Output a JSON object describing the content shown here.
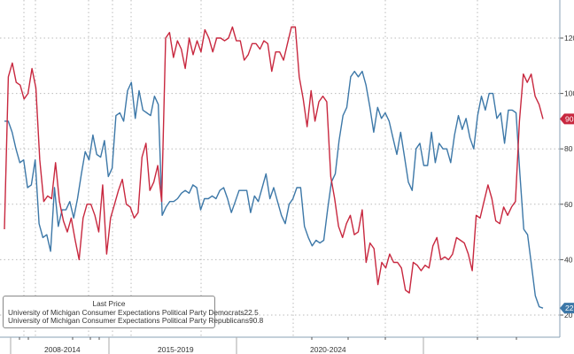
{
  "chart_data": {
    "type": "line",
    "title": "",
    "legend_title": "Last Price",
    "legend_placement": "bottom-left",
    "ylim": [
      15,
      135
    ],
    "yticks": [
      20,
      40,
      60,
      80,
      100,
      120
    ],
    "x_period_labels": [
      "2008-2014",
      "2015-2019",
      "2020-2024"
    ],
    "grid": true,
    "series": [
      {
        "name": "University of Michigan Consumer Expectations Political Party Democrats",
        "last": "22.5",
        "color": "#3d78a8",
        "values": [
          90,
          90,
          86,
          80,
          75,
          76,
          66,
          67,
          76,
          53,
          48,
          49,
          43,
          66,
          52,
          58,
          58,
          61,
          55,
          62,
          71,
          79,
          76,
          85,
          78,
          77,
          83,
          70,
          73,
          92,
          93,
          90,
          101,
          104,
          91,
          101,
          94,
          93,
          92,
          99,
          96,
          56,
          59,
          61,
          61,
          62,
          64,
          65,
          64,
          67,
          66,
          58,
          62,
          62,
          63,
          62,
          65,
          66,
          62,
          57,
          61,
          65,
          65,
          65,
          57,
          63,
          61,
          66,
          71,
          62,
          66,
          61,
          56,
          53,
          60,
          62,
          66,
          66,
          52,
          48,
          45,
          47,
          46,
          47,
          58,
          68,
          71,
          83,
          92,
          95,
          106,
          108,
          106,
          108,
          103,
          95,
          86,
          95,
          91,
          93,
          90,
          84,
          78,
          86,
          77,
          68,
          65,
          80,
          82,
          74,
          74,
          86,
          75,
          82,
          80,
          80,
          75,
          85,
          92,
          87,
          91,
          84,
          80,
          92,
          99,
          94,
          100,
          100,
          91,
          93,
          82,
          94,
          94,
          93,
          71,
          51,
          49,
          38,
          27,
          23,
          22.5
        ]
      },
      {
        "name": "University of Michigan Consumer Expectations Political Party Republicans",
        "last": "90.8",
        "color": "#c8283f",
        "values": [
          51,
          106,
          111,
          104,
          103,
          98,
          100,
          109,
          102,
          76,
          61,
          63,
          62,
          75,
          61,
          54,
          50,
          55,
          47,
          40,
          55,
          60,
          60,
          56,
          50,
          67,
          42,
          55,
          60,
          65,
          69,
          60,
          59,
          55,
          57,
          77,
          82,
          65,
          68,
          74,
          61,
          120,
          122,
          113,
          119,
          116,
          109,
          120,
          114,
          119,
          115,
          123,
          120,
          115,
          120,
          120,
          119,
          120,
          124,
          119,
          119,
          112,
          114,
          118,
          118,
          116,
          119,
          118,
          108,
          115,
          115,
          112,
          118,
          124,
          124,
          106,
          98,
          88,
          101,
          90,
          97,
          99,
          97,
          70,
          62,
          52,
          48,
          53,
          56,
          49,
          50,
          58,
          39,
          46,
          44,
          31,
          39,
          37,
          42,
          39,
          39,
          37,
          29,
          28,
          39,
          38,
          36,
          38,
          37,
          45,
          48,
          40,
          41,
          40,
          42,
          48,
          47,
          46,
          42,
          36,
          56,
          55,
          61,
          67,
          62,
          54,
          53,
          59,
          56,
          59,
          61,
          90,
          107,
          104,
          107,
          99,
          96,
          90.8
        ]
      }
    ]
  }
}
